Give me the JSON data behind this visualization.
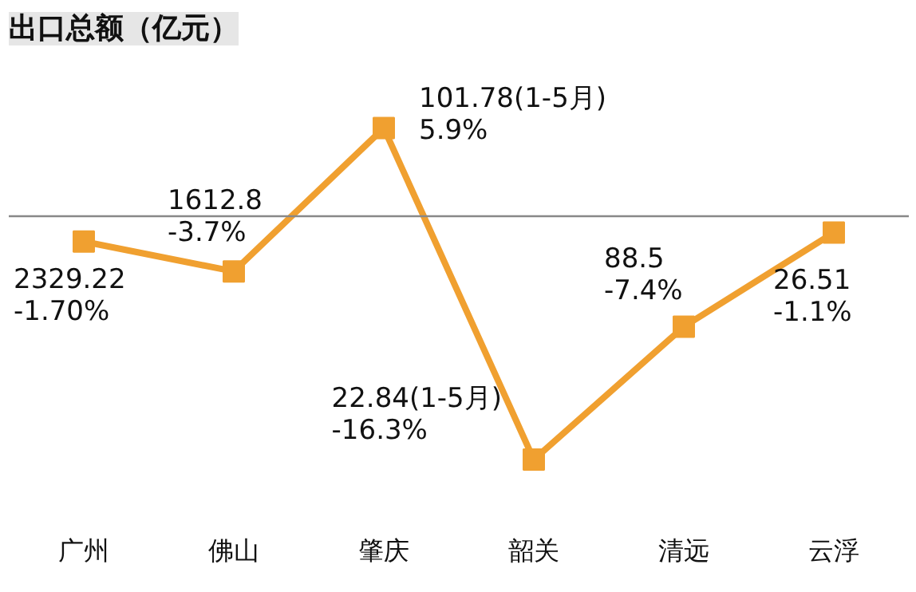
{
  "chart_data": {
    "type": "line",
    "title": "出口总额（亿元）",
    "categories": [
      "广州",
      "佛山",
      "肇庆",
      "韶关",
      "清远",
      "云浮"
    ],
    "series": [
      {
        "color": "#f0a030",
        "values": [
          -1.7,
          -3.7,
          5.9,
          -16.3,
          -7.4,
          -1.1
        ],
        "value_labels": [
          "2329.22\n-1.70%",
          "1612.8\n-3.7%",
          "101.78(1-5月)\n5.9%",
          "22.84(1-5月)\n-16.3%",
          "88.5\n-7.4%",
          "26.51\n-1.1%"
        ]
      }
    ],
    "ref_lines": [
      {
        "axis": "y",
        "value": 0,
        "color": "#888888"
      }
    ],
    "marker": "square",
    "line_style": "solid",
    "grid": false,
    "tick_labels": "x"
  }
}
